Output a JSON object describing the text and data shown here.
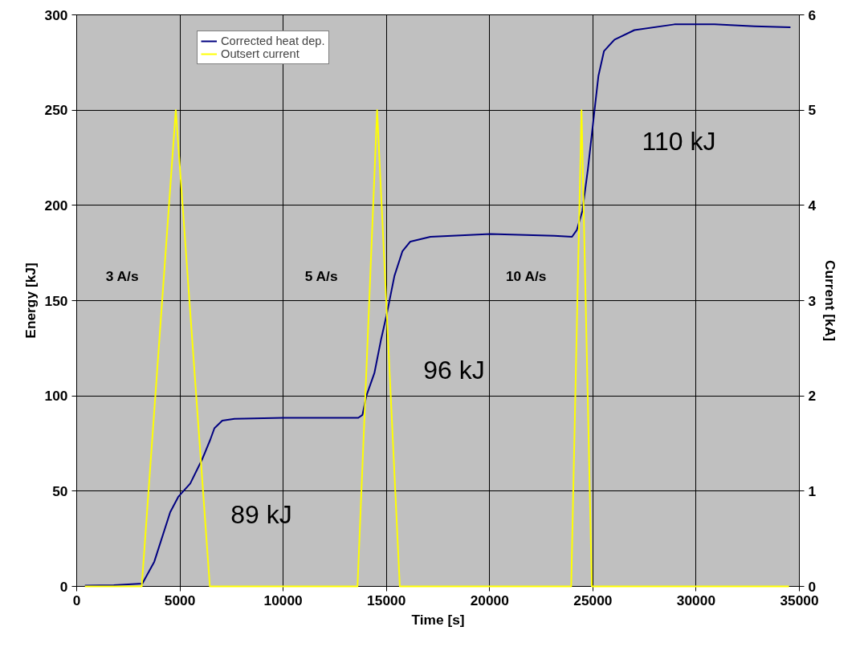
{
  "chart_data": {
    "type": "line",
    "xlabel": "Time [s]",
    "ylabel": "Energy [kJ]",
    "y2label": "Current [kA]",
    "xlim": [
      0,
      35000
    ],
    "xticks": [
      0,
      5000,
      10000,
      15000,
      20000,
      25000,
      30000,
      35000
    ],
    "ylim": [
      0,
      300
    ],
    "yticks": [
      0,
      50,
      100,
      150,
      200,
      250,
      300
    ],
    "y2lim": [
      0,
      6
    ],
    "y2ticks": [
      0,
      1,
      2,
      3,
      4,
      5,
      6
    ],
    "grid": true,
    "legend": "top left",
    "marker": "none",
    "line_style": "solid",
    "series": [
      {
        "name": "Corrected heat dep.",
        "color": "#000080",
        "x": [
          400,
          1800,
          3180,
          3760,
          4530,
          4920,
          5500,
          6090,
          6470,
          6670,
          7050,
          7640,
          10000,
          13640,
          13840,
          14030,
          14420,
          14730,
          15000,
          15390,
          15780,
          16160,
          17130,
          20040,
          23140,
          23990,
          24220,
          24490,
          24760,
          25070,
          25270,
          25540,
          26050,
          27010,
          28950,
          30890,
          32830,
          34570
        ],
        "values": [
          0.4,
          0.6,
          1.5,
          13,
          39,
          47,
          54,
          67,
          77,
          83,
          87,
          88,
          88.5,
          88.5,
          90,
          100,
          112,
          129,
          142,
          163,
          176,
          181,
          183.5,
          185,
          184,
          183.5,
          187,
          197,
          219,
          249,
          268,
          281,
          287,
          292,
          295,
          295,
          294,
          293.5
        ]
      },
      {
        "name": "Outsert current",
        "color": "#ffff00",
        "axis": "y2",
        "x": [
          400,
          3150,
          4800,
          6450,
          13600,
          14550,
          15650,
          23950,
          24450,
          24950,
          34500
        ],
        "values": [
          0,
          0,
          5,
          0,
          0,
          5,
          0,
          0,
          5,
          0,
          0
        ]
      }
    ],
    "annotations": [
      "3 A/s",
      "5 A/s",
      "10 A/s",
      "89 kJ",
      "96 kJ",
      "110 kJ"
    ]
  }
}
